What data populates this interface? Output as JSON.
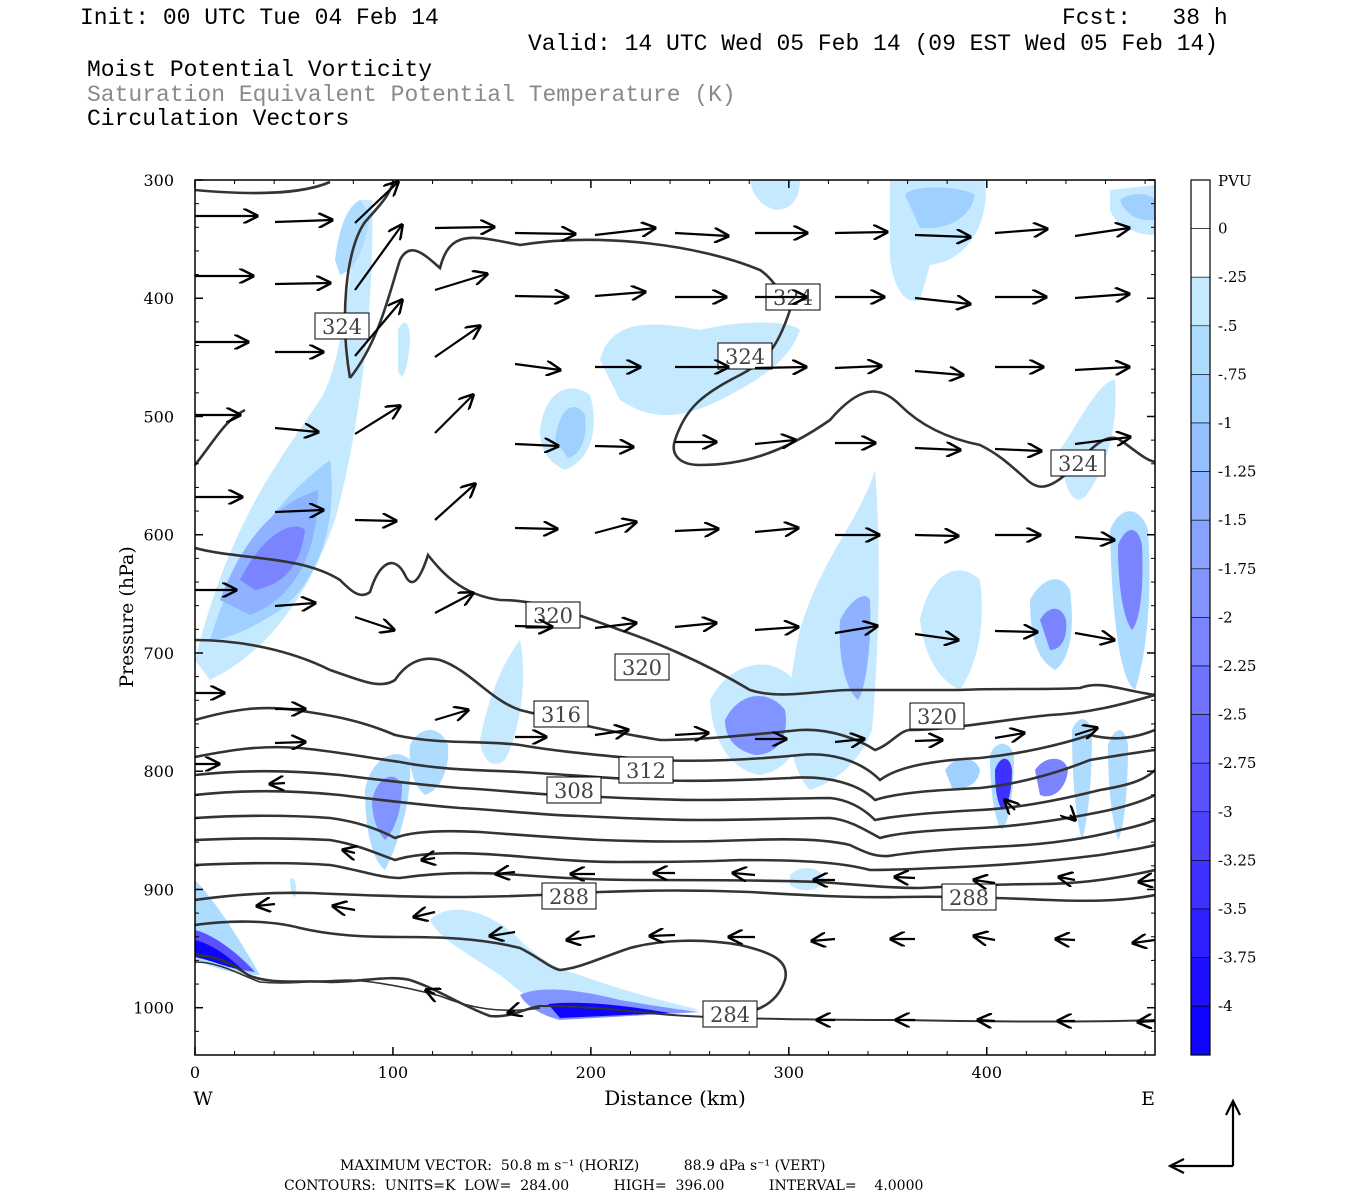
{
  "header": {
    "init": "Init: 00 UTC Tue 04 Feb 14",
    "fcst": "Fcst:   38 h",
    "valid": "Valid: 14 UTC Wed 05 Feb 14 (09 EST Wed 05 Feb 14)",
    "field1": "Moist Potential Vorticity",
    "field2": "Saturation Equivalent Potential Temperature (K)",
    "field3": "Circulation Vectors"
  },
  "axes": {
    "ylabel": "Pressure (hPa)",
    "xlabel": "Distance (km)",
    "west": "W",
    "east": "E",
    "yticks": [
      "300",
      "400",
      "500",
      "600",
      "700",
      "800",
      "900",
      "1000"
    ],
    "xticks": [
      "0",
      "100",
      "200",
      "300",
      "400"
    ]
  },
  "colorbar": {
    "unit": "PVU",
    "labels": [
      "0",
      "-.25",
      "-.5",
      "-.75",
      "-1",
      "-1.25",
      "-1.5",
      "-1.75",
      "-2",
      "-2.25",
      "-2.5",
      "-2.75",
      "-3",
      "-3.25",
      "-3.5",
      "-3.75",
      "-4"
    ],
    "colors": [
      "#ffffff",
      "#ffffff",
      "#c5e9ff",
      "#aedcff",
      "#9fd0ff",
      "#95c0ff",
      "#8eb2ff",
      "#87a3ff",
      "#8294ff",
      "#7a84ff",
      "#6f73ff",
      "#6462ff",
      "#5a52ff",
      "#4f42ff",
      "#3f31ff",
      "#2e20ff",
      "#1e10ff",
      "#0f05ff"
    ]
  },
  "contour_labels": [
    {
      "text": "324"
    },
    {
      "text": "324"
    },
    {
      "text": "324"
    },
    {
      "text": "324"
    },
    {
      "text": "320"
    },
    {
      "text": "320"
    },
    {
      "text": "320"
    },
    {
      "text": "316"
    },
    {
      "text": "312"
    },
    {
      "text": "308"
    },
    {
      "text": "288"
    },
    {
      "text": "288"
    },
    {
      "text": "284"
    }
  ],
  "footer": {
    "max_vector": "MAXIMUM VECTOR:  50.8 m s⁻¹ (HORIZ)          88.9 dPa s⁻¹ (VERT)",
    "contours": "CONTOURS:  UNITS=K  LOW=  284.00          HIGH=  396.00          INTERVAL=    4.0000"
  },
  "chart_data": {
    "type": "contour cross-section",
    "title": "Moist Potential Vorticity / Saturation Equivalent Potential Temperature (K) / Circulation Vectors",
    "xlabel": "Distance (km)",
    "ylabel": "Pressure (hPa)",
    "xlim": [
      0,
      485
    ],
    "ylim": [
      1040,
      300
    ],
    "y_scale": "linear, inverted",
    "fill_field": "Moist Potential Vorticity (PVU), shaded 0 to -4 every 0.25",
    "contour_field": {
      "units": "K",
      "low": 284.0,
      "high": 396.0,
      "interval": 4.0
    },
    "contour_label_values": [
      324,
      324,
      324,
      324,
      320,
      320,
      320,
      316,
      312,
      308,
      288,
      288,
      284
    ],
    "max_vector": {
      "horizontal_m_s": 50.8,
      "vertical_dPa_s": 88.9
    }
  }
}
